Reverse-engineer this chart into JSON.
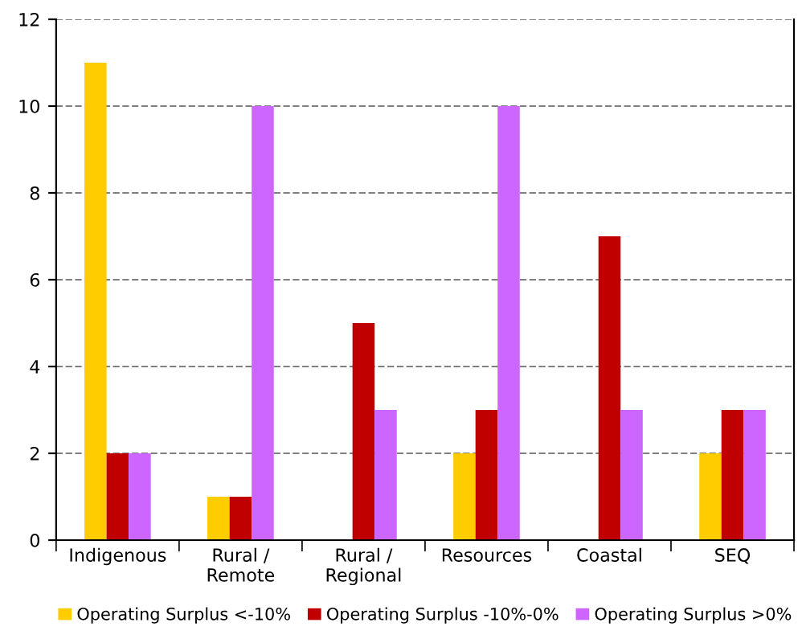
{
  "chart_data": {
    "type": "bar",
    "categories": [
      "Indigenous",
      "Rural /\nRemote",
      "Rural /\nRegional",
      "Resources",
      "Coastal",
      "SEQ"
    ],
    "series": [
      {
        "name": "Operating Surplus <-10%",
        "color": "#ffcc00",
        "values": [
          11,
          1,
          0,
          2,
          0,
          2
        ]
      },
      {
        "name": "Operating Surplus -10%-0%",
        "color": "#c00000",
        "values": [
          2,
          1,
          5,
          3,
          7,
          3
        ]
      },
      {
        "name": "Operating Surplus >0%",
        "color": "#cc66ff",
        "values": [
          2,
          10,
          3,
          10,
          3,
          3
        ]
      }
    ],
    "ylim": [
      0,
      12
    ],
    "yticks": [
      0,
      2,
      4,
      6,
      8,
      10,
      12
    ],
    "grid": "y",
    "legend": "bottom"
  }
}
